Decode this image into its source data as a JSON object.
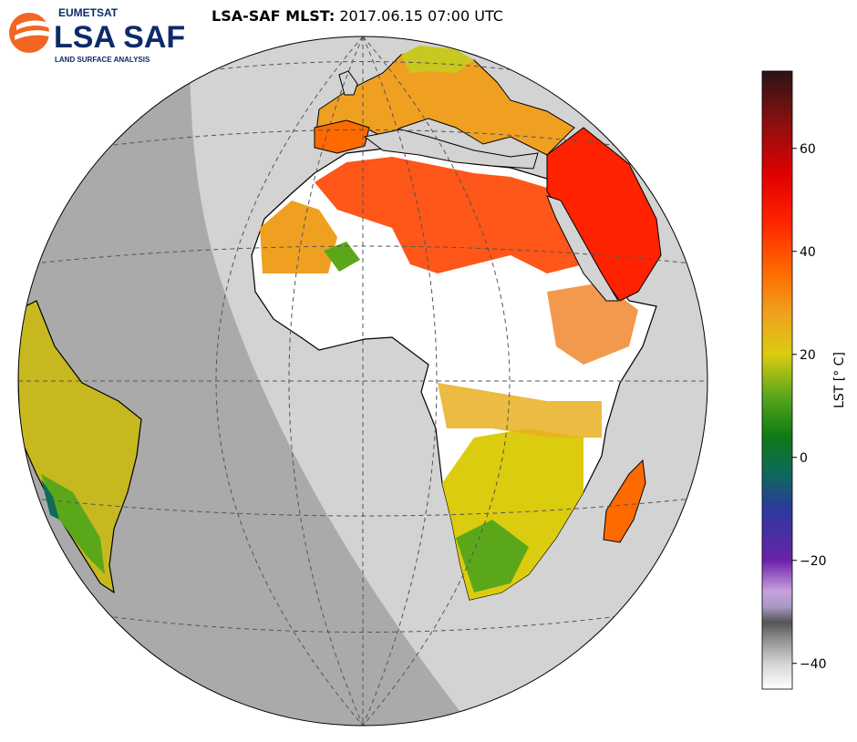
{
  "logo": {
    "org": "EUMETSAT",
    "name": "LSA SAF",
    "subtitle": "LAND SURFACE ANALYSIS",
    "brand_color": "#0d2a6b",
    "accent_color": "#f26522"
  },
  "title": {
    "product": "LSA-SAF MLST",
    "separator": ":",
    "datetime": "2017.06.15 07:00 UTC"
  },
  "colorbar": {
    "label": "LST [° C]",
    "range": [
      -45,
      75
    ],
    "ticks": [
      60,
      40,
      20,
      0,
      -20,
      -40
    ],
    "tick_labels": [
      "60",
      "40",
      "20",
      "0",
      "−20",
      "−40"
    ],
    "stops": [
      {
        "value": -45,
        "color": "#ffffff"
      },
      {
        "value": -40,
        "color": "#d4d4d4"
      },
      {
        "value": -35,
        "color": "#8a8a8a"
      },
      {
        "value": -32,
        "color": "#555555"
      },
      {
        "value": -29,
        "color": "#a898c4"
      },
      {
        "value": -26,
        "color": "#c8a0dc"
      },
      {
        "value": -20,
        "color": "#6a22a8"
      },
      {
        "value": -10,
        "color": "#2a3a9c"
      },
      {
        "value": -3,
        "color": "#0e6a5a"
      },
      {
        "value": 4,
        "color": "#0e7a16"
      },
      {
        "value": 12,
        "color": "#5aa81a"
      },
      {
        "value": 20,
        "color": "#dccc10"
      },
      {
        "value": 28,
        "color": "#f0a020"
      },
      {
        "value": 36,
        "color": "#ff6a00"
      },
      {
        "value": 46,
        "color": "#ff2200"
      },
      {
        "value": 55,
        "color": "#e00000"
      },
      {
        "value": 65,
        "color": "#8a1010"
      },
      {
        "value": 75,
        "color": "#2a1414"
      }
    ]
  },
  "map": {
    "projection": "orthographic globe",
    "background_color": "#d3d3d3",
    "night_shade_color": "#aaaaaa",
    "no_data_color": "#ffffff",
    "coastline_color": "#000000",
    "gridline_style": "dashed"
  }
}
